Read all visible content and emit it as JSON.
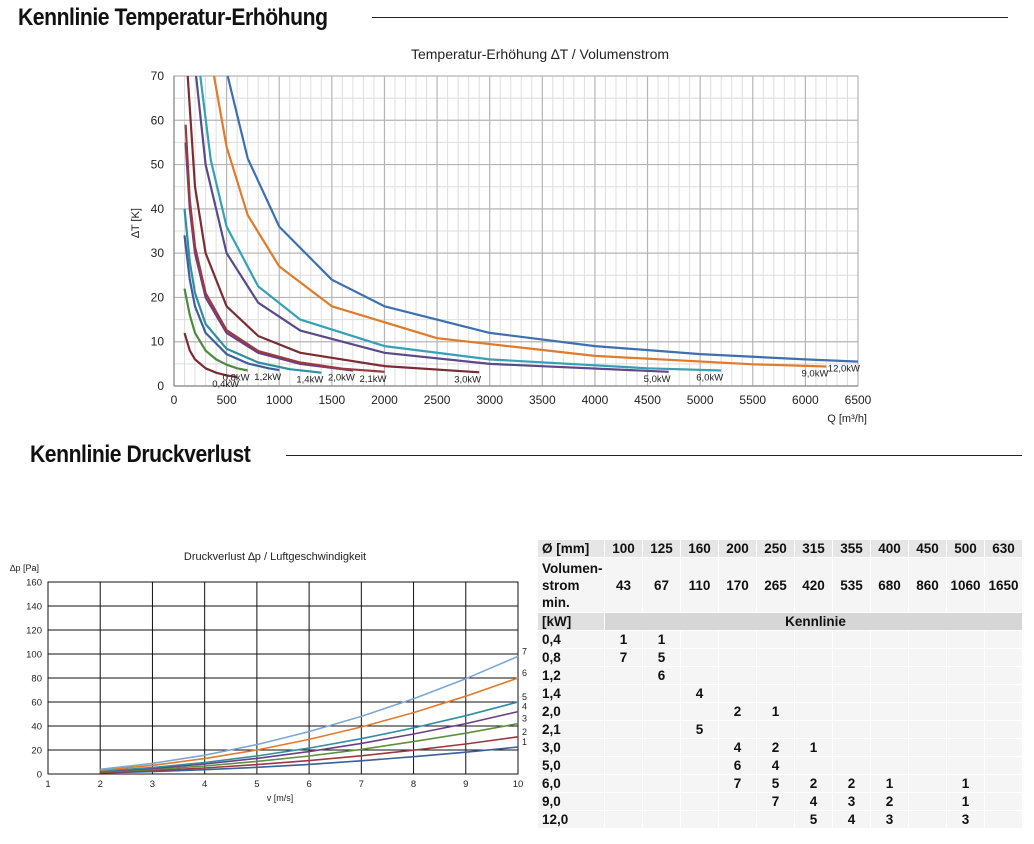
{
  "sections": {
    "temperature_title": "Kennlinie Temperatur-Erhöhung",
    "pressure_title": "Kennlinie Druckverlust"
  },
  "chart_data": [
    {
      "type": "line",
      "title": "Temperatur-Erhöhung ∆T / Volumenstrom",
      "xlabel": "Q [m³/h]",
      "ylabel": "∆T [K]",
      "xlim": [
        0,
        6500
      ],
      "ylim": [
        0,
        70
      ],
      "x_ticks": [
        0,
        500,
        1000,
        1500,
        2000,
        2500,
        3000,
        3500,
        4000,
        4500,
        5000,
        5500,
        6000,
        6500
      ],
      "y_ticks": [
        0,
        10,
        20,
        30,
        40,
        50,
        60,
        70
      ],
      "grid": true,
      "series": [
        {
          "name": "0,4kW",
          "color": "#7b2c33",
          "x": [
            100,
            150,
            200,
            300,
            400,
            500,
            600
          ],
          "y": [
            12.0,
            8.0,
            6.0,
            4.0,
            3.0,
            2.4,
            2.0
          ]
        },
        {
          "name": "0,8kW",
          "color": "#4e8a3e",
          "x": [
            100,
            150,
            200,
            300,
            400,
            500,
            600,
            700
          ],
          "y": [
            22.0,
            16.0,
            12.0,
            8.0,
            6.0,
            4.8,
            4.0,
            3.5
          ]
        },
        {
          "name": "1,2kW",
          "color": "#3a5f9a",
          "x": [
            100,
            150,
            200,
            300,
            500,
            700,
            900,
            1000
          ],
          "y": [
            34.0,
            24.0,
            18.0,
            12.0,
            7.2,
            5.1,
            4.0,
            3.6
          ]
        },
        {
          "name": "1,4kW",
          "color": "#2f8fa0",
          "x": [
            100,
            150,
            200,
            300,
            500,
            800,
            1100,
            1400
          ],
          "y": [
            40.0,
            28.0,
            21.0,
            14.0,
            8.4,
            5.3,
            3.8,
            3.0
          ]
        },
        {
          "name": "2,0kW",
          "color": "#6b3f86",
          "x": [
            110,
            150,
            200,
            300,
            500,
            800,
            1200,
            1700
          ],
          "y": [
            55.0,
            40.0,
            30.0,
            20.0,
            12.0,
            7.5,
            5.0,
            3.5
          ]
        },
        {
          "name": "2,1kW",
          "color": "#9a3a3f",
          "x": [
            110,
            150,
            200,
            300,
            500,
            800,
            1200,
            1600,
            2000
          ],
          "y": [
            59.0,
            42.0,
            31.5,
            21.0,
            12.6,
            7.9,
            5.3,
            3.9,
            3.2
          ]
        },
        {
          "name": "3,0kW",
          "color": "#7b2c33",
          "x": [
            130,
            200,
            300,
            500,
            800,
            1200,
            2000,
            2900
          ],
          "y": [
            70.0,
            45.0,
            30.0,
            18.0,
            11.3,
            7.5,
            4.5,
            3.1
          ]
        },
        {
          "name": "5,0kW",
          "color": "#5a4a8a",
          "x": [
            210,
            300,
            500,
            800,
            1200,
            2000,
            3000,
            4700
          ],
          "y": [
            70.0,
            50.0,
            30.0,
            18.8,
            12.5,
            7.5,
            5.0,
            3.2
          ]
        },
        {
          "name": "6,0kW",
          "color": "#36a0b4",
          "x": [
            250,
            350,
            500,
            800,
            1200,
            2000,
            3000,
            4500,
            5200
          ],
          "y": [
            70.0,
            51.0,
            36.0,
            22.5,
            15.0,
            9.0,
            6.0,
            4.0,
            3.5
          ]
        },
        {
          "name": "9,0kW",
          "color": "#e07b2c",
          "x": [
            380,
            500,
            700,
            1000,
            1500,
            2500,
            4000,
            5500,
            6200
          ],
          "y": [
            70.0,
            54.0,
            38.6,
            27.0,
            18.0,
            10.8,
            6.8,
            4.9,
            4.4
          ]
        },
        {
          "name": "12,0kW",
          "color": "#3e6fb0",
          "x": [
            510,
            700,
            1000,
            1500,
            2000,
            3000,
            4000,
            5000,
            6000,
            6500
          ],
          "y": [
            70.0,
            51.4,
            36.0,
            24.0,
            18.0,
            12.0,
            9.0,
            7.2,
            6.0,
            5.5
          ]
        }
      ]
    },
    {
      "type": "line",
      "title": "Druckverlust  ∆p / Luftgeschwindigkeit",
      "xlabel": "v [m/s]",
      "ylabel": "∆p [Pa]",
      "xlim": [
        1,
        10
      ],
      "ylim": [
        0,
        160
      ],
      "x_ticks": [
        1,
        2,
        3,
        4,
        5,
        6,
        7,
        8,
        9,
        10
      ],
      "y_ticks": [
        0,
        20,
        40,
        60,
        80,
        100,
        120,
        140,
        160
      ],
      "grid": true,
      "series": [
        {
          "name": "1",
          "color": "#3a5f9a",
          "x": [
            2,
            3,
            4,
            5,
            6,
            7,
            8,
            9,
            10
          ],
          "y": [
            1,
            2,
            3.6,
            5.6,
            8,
            11,
            14.4,
            18.2,
            22.5
          ]
        },
        {
          "name": "2",
          "color": "#9a3a3f",
          "x": [
            2,
            3,
            4,
            5,
            6,
            7,
            8,
            9,
            10
          ],
          "y": [
            1.2,
            2.8,
            5,
            7.8,
            11.2,
            15.2,
            19.8,
            25,
            31
          ]
        },
        {
          "name": "3",
          "color": "#5e8f3e",
          "x": [
            2,
            3,
            4,
            5,
            6,
            7,
            8,
            9,
            10
          ],
          "y": [
            1.7,
            3.8,
            6.7,
            10.5,
            15,
            20.5,
            27,
            34,
            42
          ]
        },
        {
          "name": "4",
          "color": "#6b3f86",
          "x": [
            2,
            3,
            4,
            5,
            6,
            7,
            8,
            9,
            10
          ],
          "y": [
            2.1,
            4.7,
            8.3,
            13,
            18.7,
            25.5,
            33.3,
            42,
            52
          ]
        },
        {
          "name": "5",
          "color": "#2f8fa0",
          "x": [
            2,
            3,
            4,
            5,
            6,
            7,
            8,
            9,
            10
          ],
          "y": [
            2.4,
            5.4,
            9.6,
            15,
            21.6,
            29.4,
            38.4,
            48.6,
            60
          ]
        },
        {
          "name": "6",
          "color": "#e07b2c",
          "x": [
            2,
            3,
            4,
            5,
            6,
            7,
            8,
            9,
            10
          ],
          "y": [
            3.2,
            7.2,
            12.8,
            20,
            28.8,
            39.2,
            51.2,
            64.8,
            80
          ]
        },
        {
          "name": "7",
          "color": "#7ea6d6",
          "x": [
            2,
            3,
            4,
            5,
            6,
            7,
            8,
            9,
            10
          ],
          "y": [
            3.9,
            8.8,
            15.7,
            24.5,
            35.3,
            48,
            62.7,
            79.4,
            98
          ]
        }
      ]
    }
  ],
  "table": {
    "diameter_label": "Ø [mm]",
    "diameters": [
      "100",
      "125",
      "160",
      "200",
      "250",
      "315",
      "355",
      "400",
      "450",
      "500",
      "630"
    ],
    "volume_label_lines": [
      "Volumen-",
      "strom",
      "min."
    ],
    "volume_values": [
      "43",
      "67",
      "110",
      "170",
      "265",
      "420",
      "535",
      "680",
      "860",
      "1060",
      "1650"
    ],
    "kw_label": "[kW]",
    "kennlinie_label": "Kennlinie",
    "rows": [
      {
        "kw": "0,4",
        "cells": [
          "1",
          "1",
          "",
          "",
          "",
          "",
          "",
          "",
          "",
          "",
          ""
        ]
      },
      {
        "kw": "0,8",
        "cells": [
          "7",
          "5",
          "",
          "",
          "",
          "",
          "",
          "",
          "",
          "",
          ""
        ]
      },
      {
        "kw": "1,2",
        "cells": [
          "",
          "6",
          "",
          "",
          "",
          "",
          "",
          "",
          "",
          "",
          ""
        ]
      },
      {
        "kw": "1,4",
        "cells": [
          "",
          "",
          "4",
          "",
          "",
          "",
          "",
          "",
          "",
          "",
          ""
        ]
      },
      {
        "kw": "2,0",
        "cells": [
          "",
          "",
          "",
          "2",
          "1",
          "",
          "",
          "",
          "",
          "",
          ""
        ]
      },
      {
        "kw": "2,1",
        "cells": [
          "",
          "",
          "5",
          "",
          "",
          "",
          "",
          "",
          "",
          "",
          ""
        ]
      },
      {
        "kw": "3,0",
        "cells": [
          "",
          "",
          "",
          "4",
          "2",
          "1",
          "",
          "",
          "",
          "",
          ""
        ]
      },
      {
        "kw": "5,0",
        "cells": [
          "",
          "",
          "",
          "6",
          "4",
          "",
          "",
          "",
          "",
          "",
          ""
        ]
      },
      {
        "kw": "6,0",
        "cells": [
          "",
          "",
          "",
          "7",
          "5",
          "2",
          "2",
          "1",
          "",
          "1",
          ""
        ]
      },
      {
        "kw": "9,0",
        "cells": [
          "",
          "",
          "",
          "",
          "7",
          "4",
          "3",
          "2",
          "",
          "1",
          ""
        ]
      },
      {
        "kw": "12,0",
        "cells": [
          "",
          "",
          "",
          "",
          "",
          "5",
          "4",
          "3",
          "",
          "3",
          ""
        ]
      }
    ]
  }
}
